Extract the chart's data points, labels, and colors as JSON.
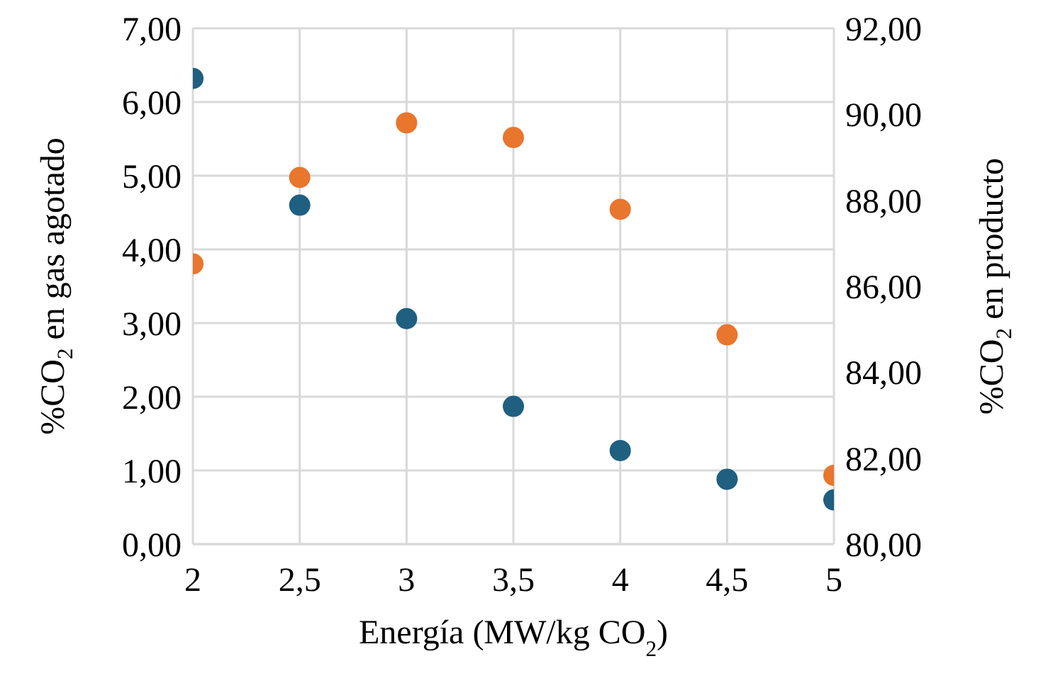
{
  "chart_data": {
    "type": "scatter",
    "xlabel": "Energía (MW/kg CO$_{2}$)",
    "ylabel": "%CO$_{2}$ en gas agotado",
    "y2label": "%CO$_{2}$ en producto",
    "x": [
      2,
      2.5,
      3,
      3.5,
      4,
      4.5,
      5
    ],
    "series": [
      {
        "color": "#1f5f80",
        "values": [
          6.32,
          4.6,
          3.06,
          1.87,
          1.27,
          0.88,
          0.6
        ]
      },
      {
        "color": "#e8762d",
        "axis": "y2",
        "values": [
          86.52,
          88.53,
          89.8,
          89.46,
          87.79,
          84.87,
          81.6
        ]
      }
    ],
    "xlim": [
      2,
      5
    ],
    "xticks": [
      2,
      {
        "value": 2.5,
        "label": "2,5"
      },
      3,
      {
        "value": 3.5,
        "label": "3,5"
      },
      4,
      {
        "value": 4.5,
        "label": "4,5"
      },
      5
    ],
    "ylim": [
      0,
      7
    ],
    "yticks": [
      {
        "value": 0,
        "label": "0,00"
      },
      {
        "value": 1,
        "label": "1,00"
      },
      {
        "value": 2,
        "label": "2,00"
      },
      {
        "value": 3,
        "label": "3,00"
      },
      {
        "value": 4,
        "label": "4,00"
      },
      {
        "value": 5,
        "label": "5,00"
      },
      {
        "value": 6,
        "label": "6,00"
      },
      {
        "value": 7,
        "label": "7,00"
      }
    ],
    "y2lim": [
      80,
      92
    ],
    "y2ticks": [
      {
        "value": 80,
        "label": "80,00"
      },
      {
        "value": 82,
        "label": "82,00"
      },
      {
        "value": 84,
        "label": "84,00"
      },
      {
        "value": 86,
        "label": "86,00"
      },
      {
        "value": 88,
        "label": "88,00"
      },
      {
        "value": 90,
        "label": "90,00"
      },
      {
        "value": 92,
        "label": "92,00"
      }
    ],
    "grid": true,
    "marker": "circle",
    "legend": false
  }
}
